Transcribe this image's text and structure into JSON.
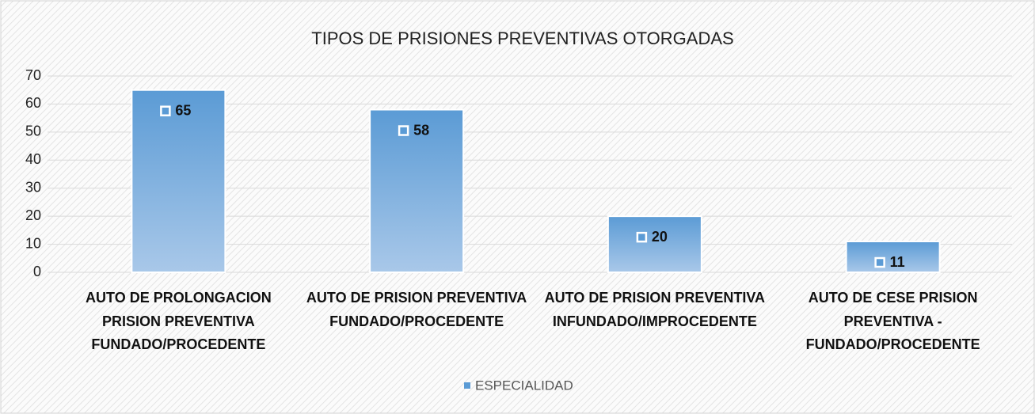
{
  "chart_data": {
    "type": "bar",
    "title": "TIPOS DE PRISIONES PREVENTIVAS OTORGADAS",
    "categories": [
      "AUTO DE PROLONGACION PRISION PREVENTIVA FUNDADO/PROCEDENTE",
      "AUTO DE PRISION PREVENTIVA FUNDADO/PROCEDENTE",
      "AUTO DE PRISION PREVENTIVA INFUNDADO/IMPROCEDENTE",
      "AUTO DE CESE PRISION PREVENTIVA - FUNDADO/PROCEDENTE"
    ],
    "series": [
      {
        "name": "ESPECIALIDAD",
        "color": "#5b9bd5",
        "values": [
          65,
          58,
          20,
          11
        ]
      }
    ],
    "ylim": [
      0,
      70
    ],
    "yticks": [
      0,
      10,
      20,
      30,
      40,
      50,
      60,
      70
    ],
    "grid": true,
    "legend": "bottom"
  }
}
